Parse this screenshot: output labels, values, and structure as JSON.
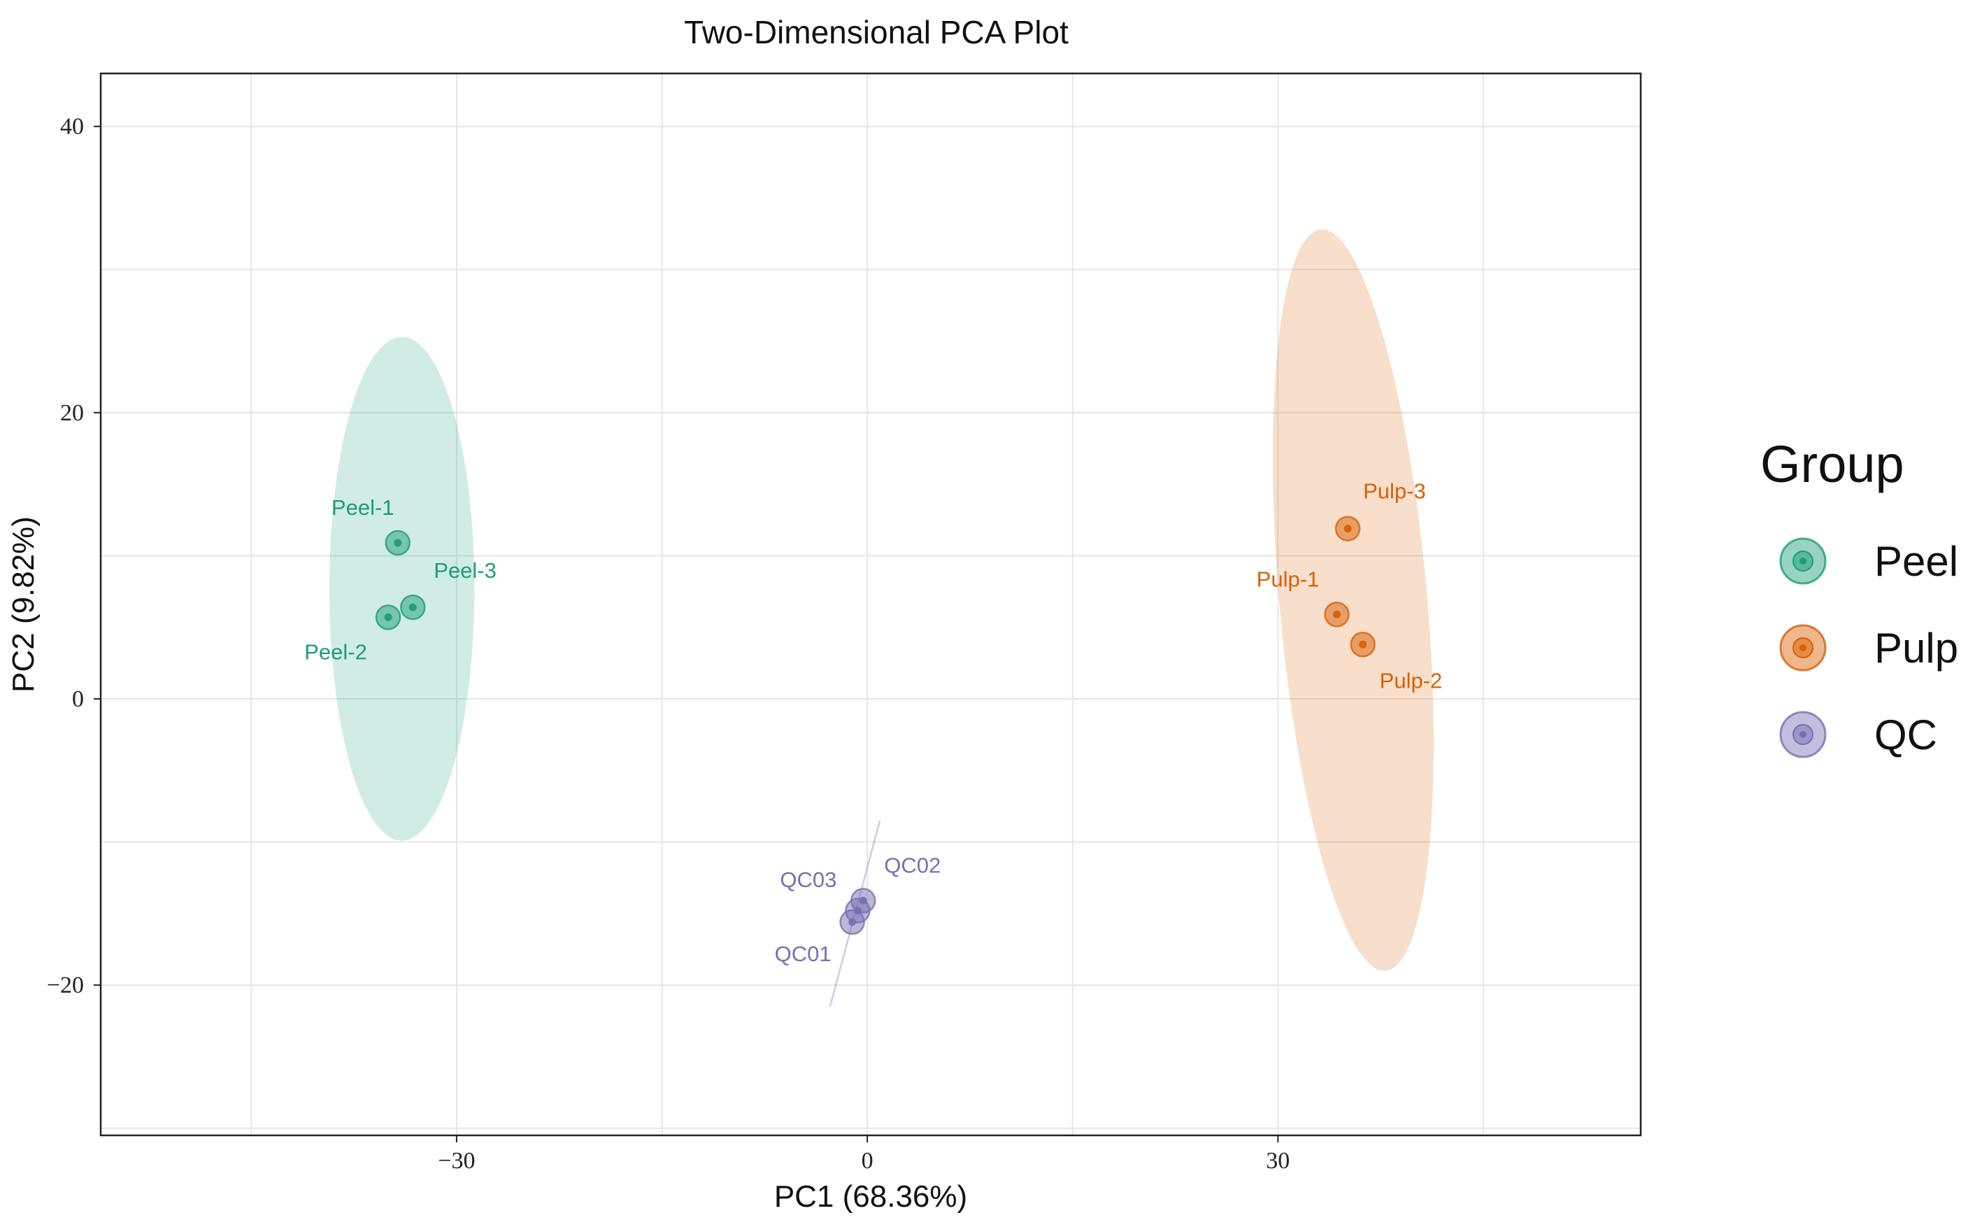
{
  "chart_data": {
    "type": "scatter",
    "title": "Two-Dimensional PCA Plot",
    "xlabel": "PC1 (68.36%)",
    "ylabel": "PC2 (9.82%)",
    "xlim": [
      -56,
      56.5
    ],
    "ylim": [
      -30.5,
      43.7
    ],
    "xticks": [
      -30,
      0,
      30
    ],
    "xtick_labels": [
      "−30",
      "0",
      "30"
    ],
    "yticks": [
      -20,
      0,
      20,
      40
    ],
    "ytick_labels": [
      "−20",
      "0",
      "20",
      "40"
    ],
    "x_grid_major": [
      -45,
      -30,
      -15,
      0,
      15,
      30,
      45
    ],
    "y_grid_major": [
      -30,
      -20,
      -10,
      0,
      10,
      20,
      30,
      40
    ],
    "grid": true,
    "legend": {
      "title": "Group",
      "position": "right",
      "entries": [
        "Peel",
        "Pulp",
        "QC"
      ]
    },
    "series": [
      {
        "name": "Peel",
        "color": "#1b9e77",
        "ellipse": {
          "cx": -34,
          "cy": 7.7,
          "rx": 5.3,
          "ry": 17.6,
          "angle": 0
        },
        "points": [
          {
            "label": "Peel-1",
            "x": -34.3,
            "y": 10.9
          },
          {
            "label": "Peel-2",
            "x": -35.0,
            "y": 5.7
          },
          {
            "label": "Peel-3",
            "x": -33.2,
            "y": 6.4
          }
        ]
      },
      {
        "name": "Pulp",
        "color": "#d95f02",
        "ellipse": {
          "cx": 35.5,
          "cy": 6.9,
          "rx": 5.4,
          "ry": 26.0,
          "angle": -5
        },
        "points": [
          {
            "label": "Pulp-1",
            "x": 34.3,
            "y": 5.9
          },
          {
            "label": "Pulp-2",
            "x": 36.2,
            "y": 3.8
          },
          {
            "label": "Pulp-3",
            "x": 35.1,
            "y": 11.9
          }
        ]
      },
      {
        "name": "QC",
        "color": "#7570b3",
        "ellipse": {
          "cx": -0.9,
          "cy": -15.0,
          "rx": 0.12,
          "ry": 6.5,
          "angle": 15
        },
        "points": [
          {
            "label": "QC01",
            "x": -1.1,
            "y": -15.6
          },
          {
            "label": "QC02",
            "x": -0.3,
            "y": -14.1
          },
          {
            "label": "QC03",
            "x": -0.7,
            "y": -14.8
          }
        ]
      }
    ]
  }
}
